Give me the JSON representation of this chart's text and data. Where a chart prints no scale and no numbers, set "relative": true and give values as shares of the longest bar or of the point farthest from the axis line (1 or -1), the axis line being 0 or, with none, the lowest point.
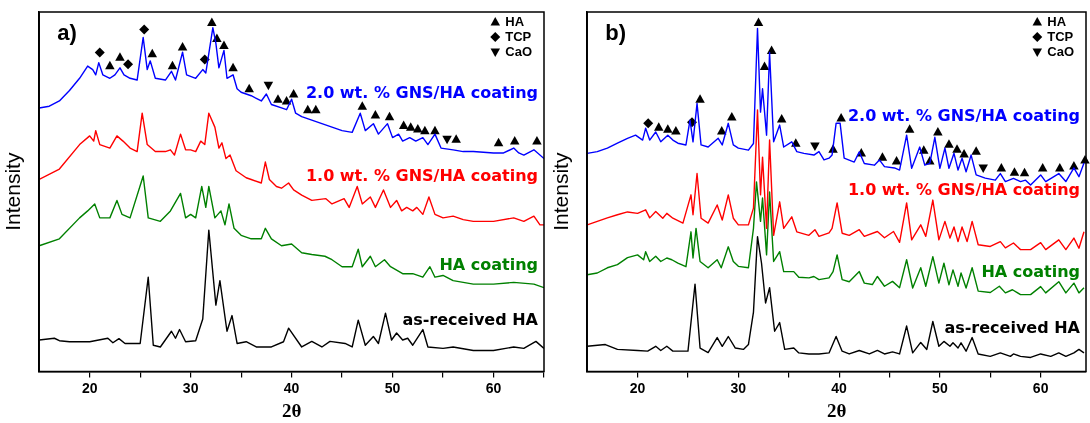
{
  "chart_data": [
    {
      "type": "line",
      "title": "a)",
      "xlabel": "2θ",
      "ylabel": "Intensity",
      "relative": true,
      "xlim": [
        15,
        65
      ],
      "xticks": [
        20,
        {
          "value": 25,
          "label": null
        },
        30,
        {
          "value": 35,
          "label": null
        },
        40,
        {
          "value": 45,
          "label": null
        },
        50,
        {
          "value": 55,
          "label": null
        },
        60,
        {
          "value": 65,
          "label": null
        }
      ],
      "tick_labels": "x",
      "legend": "top right",
      "series": [
        {
          "name": "2.0 wt. % GNS/HA coating",
          "color": "#0000ff",
          "x": [
            15,
            16,
            17,
            18,
            19,
            19.8,
            20.3,
            20.6,
            20.9,
            21.3,
            22,
            22.5,
            23,
            23.4,
            24,
            24.7,
            25.3,
            25.7,
            26,
            26.5,
            27.5,
            28.1,
            28.5,
            29.2,
            29.6,
            30.5,
            31.2,
            31.5,
            32.2,
            32.5,
            32.8,
            33.3,
            33.6,
            34.2,
            34.6,
            35,
            36,
            37,
            37.5,
            38,
            39,
            39.5,
            40,
            40.4,
            41,
            42,
            43,
            44,
            45,
            46,
            46.8,
            47.3,
            48.1,
            48.6,
            49.5,
            50,
            50.6,
            51,
            51.7,
            52.3,
            53,
            53.5,
            54.2,
            54.8,
            56,
            57,
            58,
            60,
            61,
            62,
            62.5,
            63,
            64,
            65
          ],
          "values": [
            0.755,
            0.76,
            0.775,
            0.805,
            0.84,
            0.875,
            0.865,
            0.85,
            0.885,
            0.85,
            0.84,
            0.85,
            0.87,
            0.85,
            0.84,
            0.835,
            0.957,
            0.865,
            0.89,
            0.84,
            0.835,
            0.86,
            0.835,
            0.915,
            0.85,
            0.84,
            0.865,
            0.855,
            0.985,
            0.94,
            0.87,
            0.92,
            0.84,
            0.85,
            0.81,
            0.8,
            0.79,
            0.775,
            0.795,
            0.765,
            0.755,
            0.75,
            0.78,
            0.74,
            0.73,
            0.72,
            0.71,
            0.7,
            0.69,
            0.685,
            0.74,
            0.69,
            0.71,
            0.68,
            0.71,
            0.67,
            0.68,
            0.66,
            0.67,
            0.66,
            0.67,
            0.65,
            0.68,
            0.64,
            0.635,
            0.63,
            0.63,
            0.626,
            0.626,
            0.64,
            0.626,
            0.62,
            0.635,
            0.61
          ]
        },
        {
          "name": "1.0 wt. % GNS/HA coating",
          "color": "#ff0000",
          "x": [
            15,
            17,
            19,
            20,
            20.4,
            20.6,
            21,
            22,
            22.7,
            23.3,
            24,
            24.7,
            25.2,
            25.7,
            26.5,
            27.5,
            28,
            28.4,
            29,
            29.5,
            30,
            30.5,
            31,
            31.4,
            31.8,
            32.4,
            32.8,
            33.1,
            33.5,
            33.9,
            34.5,
            35.5,
            36,
            37,
            37.4,
            37.8,
            38.5,
            39,
            39.7,
            40.2,
            41,
            42,
            43.4,
            44,
            45.2,
            45.7,
            46.5,
            47,
            47.8,
            48.3,
            49.1,
            49.8,
            50.4,
            50.9,
            51.4,
            52,
            52.4,
            53,
            53.6,
            54.2,
            55,
            56,
            57,
            58,
            60,
            62,
            63,
            64,
            64.6,
            65
          ],
          "values": [
            0.55,
            0.58,
            0.65,
            0.675,
            0.66,
            0.69,
            0.65,
            0.64,
            0.675,
            0.66,
            0.64,
            0.63,
            0.74,
            0.65,
            0.63,
            0.63,
            0.635,
            0.62,
            0.68,
            0.635,
            0.635,
            0.63,
            0.66,
            0.65,
            0.74,
            0.7,
            0.64,
            0.655,
            0.61,
            0.62,
            0.575,
            0.555,
            0.55,
            0.54,
            0.6,
            0.55,
            0.53,
            0.525,
            0.54,
            0.52,
            0.505,
            0.49,
            0.495,
            0.48,
            0.495,
            0.47,
            0.53,
            0.48,
            0.5,
            0.47,
            0.52,
            0.47,
            0.49,
            0.46,
            0.47,
            0.46,
            0.47,
            0.45,
            0.5,
            0.45,
            0.44,
            0.445,
            0.435,
            0.43,
            0.43,
            0.44,
            0.43,
            0.445,
            0.42,
            0.42
          ]
        },
        {
          "name": "HA coating",
          "color": "#008000",
          "x": [
            15,
            17,
            19,
            19.8,
            20.5,
            21,
            22,
            22.7,
            23.2,
            24,
            25.3,
            25.8,
            27,
            28,
            29,
            29.5,
            30,
            30.5,
            31.1,
            31.5,
            31.8,
            32.4,
            33,
            33.4,
            33.8,
            34.3,
            35,
            36,
            37,
            37.4,
            38,
            39,
            40,
            41,
            42,
            43.3,
            44,
            45,
            46,
            46.6,
            47,
            47.8,
            48.3,
            49.2,
            49.8,
            51,
            52,
            53,
            53.7,
            54.2,
            55,
            56,
            58,
            60,
            62,
            64,
            65
          ],
          "values": [
            0.36,
            0.38,
            0.44,
            0.46,
            0.48,
            0.44,
            0.44,
            0.49,
            0.45,
            0.44,
            0.56,
            0.44,
            0.43,
            0.46,
            0.51,
            0.44,
            0.45,
            0.44,
            0.53,
            0.47,
            0.53,
            0.44,
            0.46,
            0.42,
            0.48,
            0.41,
            0.39,
            0.38,
            0.38,
            0.41,
            0.38,
            0.36,
            0.365,
            0.34,
            0.335,
            0.33,
            0.32,
            0.3,
            0.3,
            0.35,
            0.3,
            0.33,
            0.3,
            0.32,
            0.3,
            0.28,
            0.28,
            0.27,
            0.3,
            0.27,
            0.275,
            0.26,
            0.25,
            0.25,
            0.255,
            0.25,
            0.24
          ]
        },
        {
          "name": "as-received HA",
          "color": "#000000",
          "x": [
            15,
            16.5,
            17,
            18,
            20,
            21.8,
            22.3,
            22.9,
            23.5,
            25,
            25.8,
            26.3,
            27,
            28.1,
            28.5,
            28.9,
            29.5,
            30.5,
            31.2,
            31.8,
            32.5,
            32.9,
            33.6,
            34.1,
            34.6,
            35.5,
            36.5,
            38,
            39.2,
            39.7,
            41,
            42,
            43,
            43.8,
            45.3,
            46,
            46.6,
            47.3,
            48.1,
            48.6,
            49.3,
            49.9,
            50.4,
            51,
            51.5,
            52,
            53,
            53.5,
            55,
            56,
            58,
            60,
            62,
            63,
            64.2,
            65
          ],
          "values": [
            0.09,
            0.095,
            0.088,
            0.085,
            0.085,
            0.095,
            0.082,
            0.094,
            0.08,
            0.08,
            0.27,
            0.075,
            0.07,
            0.115,
            0.095,
            0.12,
            0.085,
            0.088,
            0.15,
            0.405,
            0.19,
            0.26,
            0.115,
            0.16,
            0.08,
            0.085,
            0.07,
            0.07,
            0.085,
            0.124,
            0.07,
            0.086,
            0.07,
            0.086,
            0.08,
            0.07,
            0.147,
            0.075,
            0.1,
            0.08,
            0.167,
            0.09,
            0.11,
            0.09,
            0.095,
            0.075,
            0.12,
            0.07,
            0.066,
            0.07,
            0.06,
            0.06,
            0.07,
            0.066,
            0.086,
            0.066
          ]
        },
        {
          "name": "HA",
          "type": "scatter",
          "marker": "triangle",
          "color": "#000000",
          "x": [
            22,
            23,
            26.2,
            28.2,
            29.2,
            32.1,
            32.6,
            33.3,
            34.2,
            35.8,
            38.65,
            39.5,
            40.2,
            41.6,
            42.4,
            47,
            48.3,
            49.7,
            51.1,
            51.8,
            52.5,
            53.2,
            54.2,
            56.3,
            60.5,
            62.1,
            64.3
          ],
          "values": [
            0.876,
            0.9,
            0.91,
            0.876,
            0.93,
            1,
            0.954,
            0.934,
            0.87,
            0.81,
            0.78,
            0.775,
            0.795,
            0.75,
            0.75,
            0.76,
            0.735,
            0.73,
            0.705,
            0.7,
            0.695,
            0.69,
            0.69,
            0.665,
            0.655,
            0.66,
            0.66
          ]
        },
        {
          "name": "TCP",
          "type": "scatter",
          "marker": "diamond",
          "color": "#000000",
          "x": [
            21,
            23.8,
            25.4,
            31.4
          ],
          "values": [
            0.914,
            0.88,
            0.98,
            0.894
          ]
        },
        {
          "name": "CaO",
          "type": "scatter",
          "marker": "triangle-down",
          "color": "#000000",
          "x": [
            37.7,
            55.4
          ],
          "values": [
            0.82,
            0.665
          ]
        }
      ]
    },
    {
      "type": "line",
      "title": "b)",
      "xlabel": "2θ",
      "ylabel": "Intensity",
      "relative": true,
      "xlim": [
        15,
        64.5
      ],
      "xticks": [
        20,
        {
          "value": 25,
          "label": null
        },
        30,
        {
          "value": 35,
          "label": null
        },
        40,
        {
          "value": 45,
          "label": null
        },
        50,
        {
          "value": 55,
          "label": null
        },
        60
      ],
      "tick_labels": "x",
      "legend": "top right",
      "series": [
        {
          "name": "2.0 wt. % GNS/HA coating",
          "color": "#0000ff",
          "x": [
            15,
            16,
            17,
            18,
            19,
            19.8,
            20.5,
            20.8,
            21.2,
            21.8,
            22.3,
            23,
            23.5,
            24,
            24.8,
            25.2,
            25.5,
            25.9,
            26.3,
            27,
            28,
            28.4,
            29,
            29.5,
            30,
            31,
            31.5,
            31.9,
            32.2,
            32.4,
            32.8,
            33.1,
            33.5,
            34.1,
            34.5,
            35.3,
            35.8,
            36.5,
            37.5,
            38,
            38.5,
            39,
            39.3,
            39.7,
            40.1,
            40.5,
            41.5,
            42,
            42.5,
            43.5,
            44,
            44.5,
            45.5,
            46,
            46.7,
            47.2,
            48,
            48.5,
            49,
            49.5,
            50,
            50.5,
            50.9,
            51.4,
            51.8,
            52.2,
            52.6,
            53.1,
            53.6,
            54.5,
            55.5,
            56,
            56.5,
            57.3,
            58,
            58.5,
            59,
            60,
            60.5,
            61.8,
            62.5,
            63.3,
            63.8,
            64.3
          ],
          "values": [
            0.625,
            0.63,
            0.64,
            0.654,
            0.668,
            0.677,
            0.663,
            0.697,
            0.663,
            0.686,
            0.658,
            0.677,
            0.663,
            0.654,
            0.649,
            0.72,
            0.658,
            0.768,
            0.649,
            0.643,
            0.668,
            0.649,
            0.711,
            0.649,
            0.64,
            0.634,
            0.653,
            0.983,
            0.743,
            0.81,
            0.677,
            0.914,
            0.658,
            0.706,
            0.643,
            0.658,
            0.63,
            0.625,
            0.62,
            0.63,
            0.606,
            0.611,
            0.62,
            0.711,
            0.711,
            0.611,
            0.6,
            0.629,
            0.596,
            0.591,
            0.606,
            0.587,
            0.583,
            0.577,
            0.677,
            0.582,
            0.643,
            0.591,
            0.596,
            0.671,
            0.582,
            0.64,
            0.582,
            0.625,
            0.577,
            0.611,
            0.572,
            0.62,
            0.563,
            0.554,
            0.548,
            0.567,
            0.544,
            0.553,
            0.544,
            0.548,
            0.534,
            0.563,
            0.544,
            0.567,
            0.544,
            0.583,
            0.558,
            0.597
          ]
        },
        {
          "name": "1.0 wt. % GNS/HA coating",
          "color": "#ff0000",
          "x": [
            15,
            16,
            17,
            18,
            19,
            20,
            20.8,
            21.2,
            21.8,
            22.5,
            22.9,
            23.5,
            24.5,
            25.3,
            25.5,
            25.9,
            26.3,
            27,
            27.9,
            28.4,
            29,
            29.5,
            30,
            31,
            31.5,
            31.9,
            32.2,
            32.4,
            32.8,
            33.1,
            33.5,
            34.1,
            34.5,
            35.3,
            35.8,
            37,
            37.6,
            38,
            39,
            39.3,
            39.8,
            40.3,
            41,
            42,
            42.5,
            43.8,
            44.5,
            45.4,
            46,
            46.7,
            47.2,
            48.1,
            48.6,
            49.3,
            49.9,
            50.5,
            51,
            51.4,
            51.8,
            52.2,
            52.7,
            53.2,
            53.8,
            55,
            56,
            56.5,
            57.3,
            58,
            59,
            60,
            60.5,
            61.8,
            62.5,
            63.3,
            63.8,
            64.3
          ],
          "values": [
            0.42,
            0.43,
            0.44,
            0.449,
            0.457,
            0.453,
            0.463,
            0.44,
            0.458,
            0.439,
            0.453,
            0.439,
            0.425,
            0.506,
            0.449,
            0.567,
            0.439,
            0.425,
            0.477,
            0.434,
            0.506,
            0.439,
            0.42,
            0.42,
            0.468,
            0.749,
            0.506,
            0.614,
            0.41,
            0.663,
            0.39,
            0.486,
            0.41,
            0.443,
            0.4,
            0.39,
            0.406,
            0.387,
            0.397,
            0.41,
            0.483,
            0.396,
            0.39,
            0.406,
            0.387,
            0.401,
            0.383,
            0.401,
            0.37,
            0.483,
            0.377,
            0.42,
            0.387,
            0.491,
            0.377,
            0.43,
            0.382,
            0.414,
            0.372,
            0.414,
            0.372,
            0.43,
            0.363,
            0.358,
            0.372,
            0.354,
            0.368,
            0.349,
            0.349,
            0.369,
            0.349,
            0.377,
            0.349,
            0.382,
            0.353,
            0.4
          ]
        },
        {
          "name": "HA coating",
          "color": "#008000",
          "x": [
            15,
            16,
            17,
            18,
            19,
            20,
            20.6,
            20.8,
            21.2,
            21.8,
            22.3,
            22.9,
            23.4,
            24,
            24.8,
            25.3,
            25.5,
            25.8,
            26.2,
            27,
            27.9,
            28.3,
            29,
            29.5,
            30,
            31,
            31.5,
            31.8,
            32.2,
            32.4,
            32.8,
            33.1,
            33.5,
            34.1,
            34.5,
            35.5,
            36,
            37,
            37.5,
            38,
            39,
            39.4,
            39.8,
            40.3,
            41,
            42,
            42.5,
            43.3,
            43.8,
            44.5,
            45.3,
            46,
            46.7,
            47.3,
            48.1,
            48.6,
            49.3,
            49.9,
            50.4,
            50.9,
            51.3,
            51.8,
            52.1,
            52.6,
            53.2,
            53.8,
            55,
            55.9,
            56.5,
            57.2,
            58,
            59,
            60,
            60.5,
            61.8,
            62.5,
            63.3,
            63.8,
            64.3
          ],
          "values": [
            0.277,
            0.282,
            0.297,
            0.306,
            0.326,
            0.334,
            0.32,
            0.343,
            0.315,
            0.33,
            0.315,
            0.325,
            0.32,
            0.31,
            0.3,
            0.4,
            0.325,
            0.41,
            0.315,
            0.297,
            0.32,
            0.297,
            0.357,
            0.315,
            0.301,
            0.297,
            0.41,
            0.543,
            0.43,
            0.497,
            0.334,
            0.514,
            0.315,
            0.343,
            0.286,
            0.286,
            0.27,
            0.268,
            0.272,
            0.263,
            0.268,
            0.286,
            0.334,
            0.263,
            0.257,
            0.286,
            0.253,
            0.249,
            0.272,
            0.244,
            0.258,
            0.24,
            0.32,
            0.239,
            0.297,
            0.244,
            0.329,
            0.253,
            0.31,
            0.248,
            0.291,
            0.244,
            0.282,
            0.239,
            0.297,
            0.23,
            0.226,
            0.244,
            0.225,
            0.234,
            0.22,
            0.22,
            0.243,
            0.225,
            0.257,
            0.225,
            0.253,
            0.225,
            0.24
          ]
        },
        {
          "name": "as-received HA",
          "color": "#000000",
          "x": [
            15,
            16.8,
            18,
            20,
            21,
            21.8,
            22.3,
            22.9,
            23.5,
            25,
            25.7,
            26.2,
            27,
            27.9,
            28.4,
            29,
            29.7,
            30.5,
            31,
            31.5,
            31.9,
            32.3,
            32.7,
            33.1,
            33.6,
            34.1,
            34.6,
            35.5,
            36,
            37,
            38,
            39,
            39.7,
            40.3,
            41,
            42,
            43,
            43.8,
            44.5,
            45.3,
            46,
            46.7,
            47.3,
            48.1,
            48.7,
            49.3,
            49.9,
            50.4,
            51,
            51.3,
            51.8,
            52.1,
            52.6,
            53.2,
            53.8,
            55,
            56,
            57,
            57.3,
            58,
            59,
            60,
            61,
            61.8,
            62.5,
            63.3,
            63.8,
            64.3
          ],
          "values": [
            0.072,
            0.077,
            0.063,
            0.06,
            0.058,
            0.072,
            0.06,
            0.072,
            0.058,
            0.058,
            0.25,
            0.067,
            0.054,
            0.097,
            0.072,
            0.1,
            0.067,
            0.063,
            0.077,
            0.17,
            0.386,
            0.31,
            0.196,
            0.24,
            0.115,
            0.14,
            0.063,
            0.067,
            0.053,
            0.05,
            0.05,
            0.053,
            0.1,
            0.058,
            0.05,
            0.06,
            0.05,
            0.06,
            0.05,
            0.056,
            0.05,
            0.13,
            0.053,
            0.083,
            0.063,
            0.143,
            0.072,
            0.086,
            0.072,
            0.082,
            0.067,
            0.082,
            0.058,
            0.097,
            0.05,
            0.043,
            0.053,
            0.043,
            0.05,
            0.043,
            0.04,
            0.05,
            0.043,
            0.053,
            0.043,
            0.053,
            0.063,
            0.053
          ]
        },
        {
          "name": "HA",
          "type": "scatter",
          "marker": "triangle",
          "color": "#000000",
          "x": [
            22.1,
            23,
            23.8,
            26.2,
            28.35,
            29.35,
            32,
            32.6,
            33.3,
            34.3,
            35.7,
            39.4,
            40.2,
            42.2,
            44.3,
            45.7,
            47,
            48.4,
            49,
            49.8,
            50.9,
            51.7,
            52.4,
            53.6,
            56.1,
            57.4,
            58.4,
            60.2,
            61.9,
            63.3,
            64.4
          ],
          "values": [
            0.7,
            0.694,
            0.689,
            0.78,
            0.689,
            0.729,
            1,
            0.874,
            0.92,
            0.723,
            0.654,
            0.637,
            0.726,
            0.626,
            0.614,
            0.603,
            0.694,
            0.634,
            0.603,
            0.686,
            0.651,
            0.637,
            0.623,
            0.631,
            0.583,
            0.571,
            0.569,
            0.583,
            0.583,
            0.589,
            0.606
          ]
        },
        {
          "name": "TCP",
          "type": "scatter",
          "marker": "diamond",
          "color": "#000000",
          "x": [
            21.05,
            25.4
          ],
          "values": [
            0.711,
            0.714
          ]
        },
        {
          "name": "CaO",
          "type": "scatter",
          "marker": "triangle-down",
          "color": "#000000",
          "x": [
            37.6,
            54.3
          ],
          "values": [
            0.646,
            0.583
          ]
        }
      ]
    }
  ]
}
